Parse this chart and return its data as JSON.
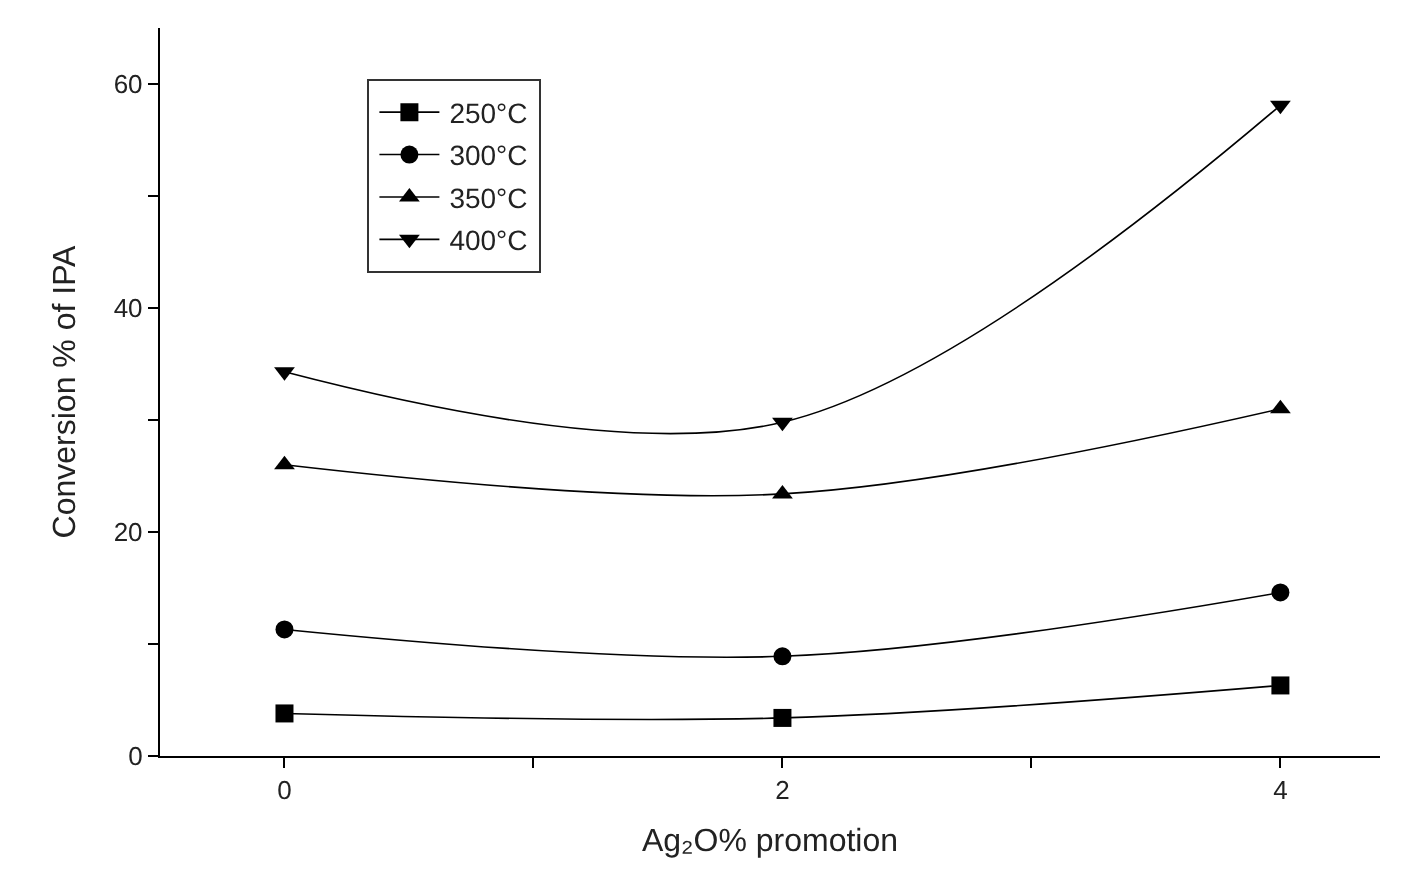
{
  "chart_data": {
    "type": "line",
    "xlabel": "Ag₂O% promotion",
    "ylabel": "Conversion % of IPA",
    "x": [
      0,
      2,
      4
    ],
    "series": [
      {
        "name": "250°C",
        "color": "#000000",
        "marker": "square",
        "values": [
          3.8,
          3.4,
          6.3
        ]
      },
      {
        "name": "300°C",
        "color": "#000000",
        "marker": "circle",
        "values": [
          11.3,
          8.9,
          14.6
        ]
      },
      {
        "name": "350°C",
        "color": "#000000",
        "marker": "triangle",
        "values": [
          26.0,
          23.4,
          31.0
        ]
      },
      {
        "name": "400°C",
        "color": "#000000",
        "marker": "triangle-down",
        "values": [
          34.3,
          29.8,
          58.1
        ]
      }
    ],
    "xlim": [
      -0.5,
      4.4
    ],
    "xticks": [
      0,
      {
        "value": 1,
        "label": null
      },
      2,
      {
        "value": 3,
        "label": null
      },
      4
    ],
    "ylim": [
      0,
      65
    ],
    "yticks": [
      0,
      {
        "value": 10,
        "label": null
      },
      20,
      {
        "value": 30,
        "label": null
      },
      40,
      {
        "value": 50,
        "label": null
      },
      60
    ],
    "grid": false,
    "legend": "top left",
    "line_style": "solid"
  }
}
